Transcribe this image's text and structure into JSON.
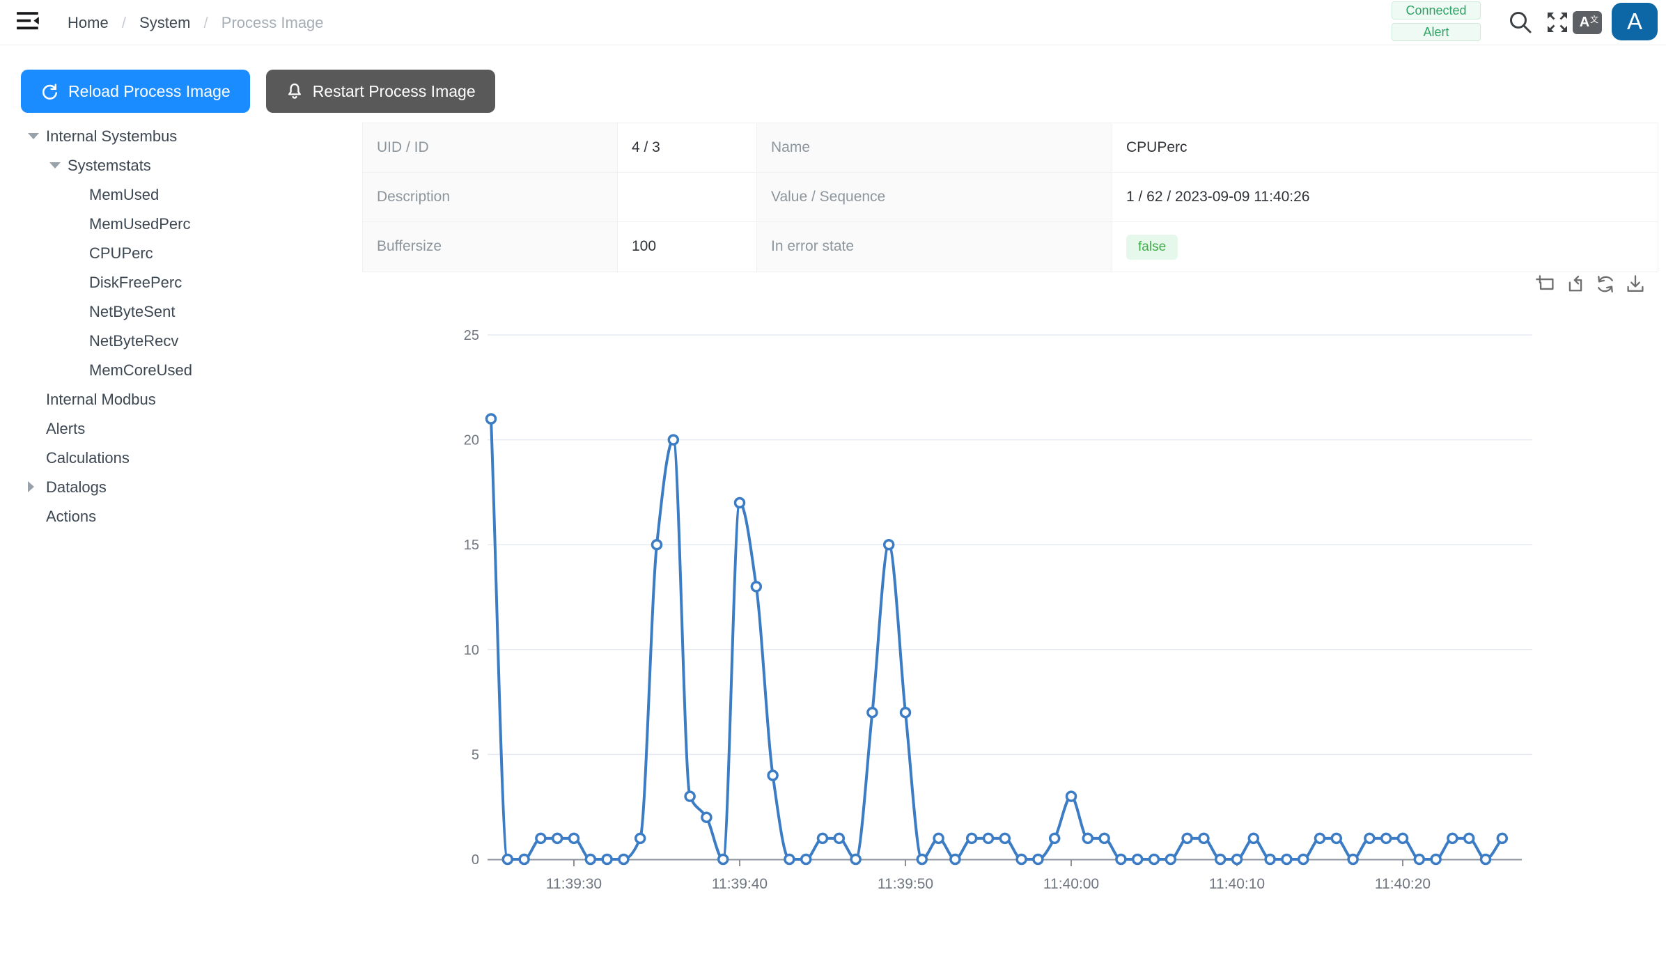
{
  "header": {
    "breadcrumb": {
      "items": [
        "Home",
        "System",
        "Process Image"
      ],
      "separator": "/"
    },
    "badges": [
      {
        "label": "Connected"
      },
      {
        "label": "Alert"
      }
    ],
    "translate_letter": "A",
    "translate_zh": "文",
    "avatar_letter": "A"
  },
  "toolbar": {
    "reload_label": "Reload Process Image",
    "restart_label": "Restart Process Image"
  },
  "tree": {
    "items": [
      {
        "label": "Internal Systembus",
        "level": 0,
        "caret": "down"
      },
      {
        "label": "Systemstats",
        "level": 1,
        "caret": "down"
      },
      {
        "label": "MemUsed",
        "level": 2,
        "caret": "none"
      },
      {
        "label": "MemUsedPerc",
        "level": 2,
        "caret": "none"
      },
      {
        "label": "CPUPerc",
        "level": 2,
        "caret": "none"
      },
      {
        "label": "DiskFreePerc",
        "level": 2,
        "caret": "none"
      },
      {
        "label": "NetByteSent",
        "level": 2,
        "caret": "none"
      },
      {
        "label": "NetByteRecv",
        "level": 2,
        "caret": "none"
      },
      {
        "label": "MemCoreUsed",
        "level": 2,
        "caret": "none"
      },
      {
        "label": "Internal Modbus",
        "level": 0,
        "caret": "none"
      },
      {
        "label": "Alerts",
        "level": 0,
        "caret": "none"
      },
      {
        "label": "Calculations",
        "level": 0,
        "caret": "none"
      },
      {
        "label": "Datalogs",
        "level": 0,
        "caret": "right"
      },
      {
        "label": "Actions",
        "level": 0,
        "caret": "none"
      }
    ]
  },
  "table": {
    "rows": [
      {
        "cells": [
          {
            "t": "label",
            "v": "UID / ID"
          },
          {
            "t": "value",
            "v": "4 / 3"
          },
          {
            "t": "label",
            "v": "Name"
          },
          {
            "t": "value",
            "v": "CPUPerc"
          }
        ]
      },
      {
        "cells": [
          {
            "t": "label",
            "v": "Description"
          },
          {
            "t": "value",
            "v": ""
          },
          {
            "t": "label",
            "v": "Value / Sequence"
          },
          {
            "t": "value",
            "v": "1 / 62 / 2023-09-09 11:40:26"
          }
        ]
      },
      {
        "cells": [
          {
            "t": "label",
            "v": "Buffersize"
          },
          {
            "t": "value",
            "v": "100"
          },
          {
            "t": "label",
            "v": "In error state"
          },
          {
            "t": "badge",
            "v": "false"
          }
        ]
      }
    ]
  },
  "toolbox": {
    "buttons": [
      {
        "name": "zoom-select-icon"
      },
      {
        "name": "zoom-back-icon"
      },
      {
        "name": "restore-icon"
      },
      {
        "name": "save-image-icon"
      }
    ]
  },
  "chart_data": {
    "type": "line",
    "series_name": "CPUPerc",
    "smooth": true,
    "grid": true,
    "marker": "empty-circle",
    "line_color": "#3b7cc4",
    "ylim": [
      0,
      25
    ],
    "y_ticks": [
      0,
      5,
      10,
      15,
      20,
      25
    ],
    "x_interval_seconds": 1,
    "x_tick_labels": [
      "11:39:30",
      "11:39:40",
      "11:39:50",
      "11:40:00",
      "11:40:10",
      "11:40:20"
    ],
    "x_tick_indices": [
      5,
      15,
      25,
      35,
      45,
      55
    ],
    "times": [
      "11:39:25",
      "11:39:26",
      "11:39:27",
      "11:39:28",
      "11:39:29",
      "11:39:30",
      "11:39:31",
      "11:39:32",
      "11:39:33",
      "11:39:34",
      "11:39:35",
      "11:39:36",
      "11:39:37",
      "11:39:38",
      "11:39:39",
      "11:39:40",
      "11:39:41",
      "11:39:42",
      "11:39:43",
      "11:39:44",
      "11:39:45",
      "11:39:46",
      "11:39:47",
      "11:39:48",
      "11:39:49",
      "11:39:50",
      "11:39:51",
      "11:39:52",
      "11:39:53",
      "11:39:54",
      "11:39:55",
      "11:39:56",
      "11:39:57",
      "11:39:58",
      "11:39:59",
      "11:40:00",
      "11:40:01",
      "11:40:02",
      "11:40:03",
      "11:40:04",
      "11:40:05",
      "11:40:06",
      "11:40:07",
      "11:40:08",
      "11:40:09",
      "11:40:10",
      "11:40:11",
      "11:40:12",
      "11:40:13",
      "11:40:14",
      "11:40:15",
      "11:40:16",
      "11:40:17",
      "11:40:18",
      "11:40:19",
      "11:40:20",
      "11:40:21",
      "11:40:22",
      "11:40:23",
      "11:40:24",
      "11:40:25",
      "11:40:26"
    ],
    "values": [
      21,
      0,
      0,
      1,
      1,
      1,
      0,
      0,
      0,
      1,
      15,
      20,
      3,
      2,
      0,
      17,
      13,
      4,
      0,
      0,
      1,
      1,
      0,
      7,
      15,
      7,
      0,
      1,
      0,
      1,
      1,
      1,
      0,
      0,
      1,
      3,
      1,
      1,
      0,
      0,
      0,
      0,
      1,
      1,
      0,
      0,
      1,
      0,
      0,
      0,
      1,
      1,
      0,
      1,
      1,
      1,
      0,
      0,
      1,
      1,
      0,
      1
    ]
  },
  "colors": {
    "primary": "#1a8cff",
    "dark_button": "#595959",
    "badge_green_text": "#2aa463",
    "badge_green_bg": "#f0faf4",
    "badge_green_border": "#cdeadb",
    "false_badge_bg": "#e6f8eb",
    "false_badge_text": "#41ad4a",
    "chart_line": "#3b7cc4",
    "avatar_bg": "#0d67a7"
  }
}
